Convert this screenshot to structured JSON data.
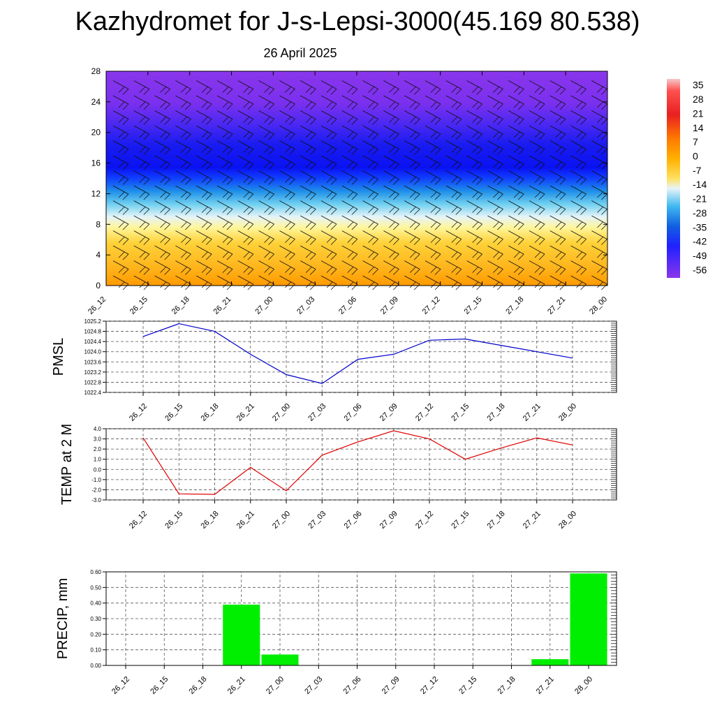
{
  "title": "Kazhydromet for J-s-Lepsi-3000(45.169 80.538)",
  "subtitle": "26 April 2025",
  "colors": {
    "pmsl_line": "#0000cc",
    "temp_line": "#e00000",
    "precip_bar": "#00ee00"
  },
  "chart_data": [
    {
      "type": "heatmap",
      "name": "temperature-height-cross-section",
      "x_ticks": [
        "26_12",
        "26_15",
        "26_18",
        "26_21",
        "27_00",
        "27_03",
        "27_06",
        "27_09",
        "27_12",
        "27_15",
        "27_18",
        "27_21",
        "28_00"
      ],
      "y_ticks": [
        "0",
        "4",
        "8",
        "12",
        "16",
        "20",
        "24",
        "28"
      ],
      "ylim": [
        0,
        28
      ],
      "colorbar_labels": [
        "35",
        "28",
        "21",
        "14",
        "7",
        "0",
        "-7",
        "-14",
        "-21",
        "-28",
        "-35",
        "-42",
        "-49",
        "-56"
      ],
      "colorbar_range": [
        -60,
        38
      ],
      "wind_barbs": true
    },
    {
      "type": "line",
      "name": "PMSL",
      "ylabel": "PMSL",
      "categories": [
        "26_12",
        "26_15",
        "26_18",
        "26_21",
        "27_00",
        "27_03",
        "27_06",
        "27_09",
        "27_12",
        "27_15",
        "27_18",
        "27_21",
        "28_00"
      ],
      "values": [
        1024.6,
        1025.1,
        1024.8,
        1023.9,
        1023.1,
        1022.75,
        1023.7,
        1023.9,
        1024.45,
        1024.5,
        1024.25,
        1024.0,
        1023.75
      ],
      "y_ticks": [
        "1022.4",
        "1022.8",
        "1023.2",
        "1023.6",
        "1024.0",
        "1024.4",
        "1024.8",
        "1025.2"
      ],
      "ylim": [
        1022.4,
        1025.2
      ],
      "grid": true
    },
    {
      "type": "line",
      "name": "TEMP at 2 M",
      "ylabel": "TEMP at 2 M",
      "categories": [
        "26_12",
        "26_15",
        "26_18",
        "26_21",
        "27_00",
        "27_03",
        "27_06",
        "27_09",
        "27_12",
        "27_15",
        "27_18",
        "27_21",
        "28_00"
      ],
      "values": [
        3.1,
        -2.4,
        -2.45,
        0.2,
        -2.1,
        1.4,
        2.7,
        3.8,
        3.0,
        1.0,
        2.1,
        3.1,
        2.4
      ],
      "y_ticks": [
        "-3.0",
        "-2.0",
        "-1.0",
        "0.0",
        "1.0",
        "2.0",
        "3.0",
        "4.0"
      ],
      "ylim": [
        -3.0,
        4.0
      ],
      "grid": true
    },
    {
      "type": "bar",
      "name": "PRECIP, mm",
      "ylabel": "PRECIP, mm",
      "categories": [
        "26_12",
        "26_15",
        "26_18",
        "26_21",
        "27_00",
        "27_03",
        "27_06",
        "27_09",
        "27_12",
        "27_15",
        "27_18",
        "27_21",
        "28_00"
      ],
      "values": [
        0,
        0,
        0,
        0.39,
        0.07,
        0,
        0,
        0,
        0,
        0,
        0,
        0.04,
        0.59
      ],
      "y_ticks": [
        "0.00",
        "0.10",
        "0.20",
        "0.30",
        "0.40",
        "0.50",
        "0.60"
      ],
      "ylim": [
        0,
        0.6
      ],
      "grid": true
    }
  ]
}
